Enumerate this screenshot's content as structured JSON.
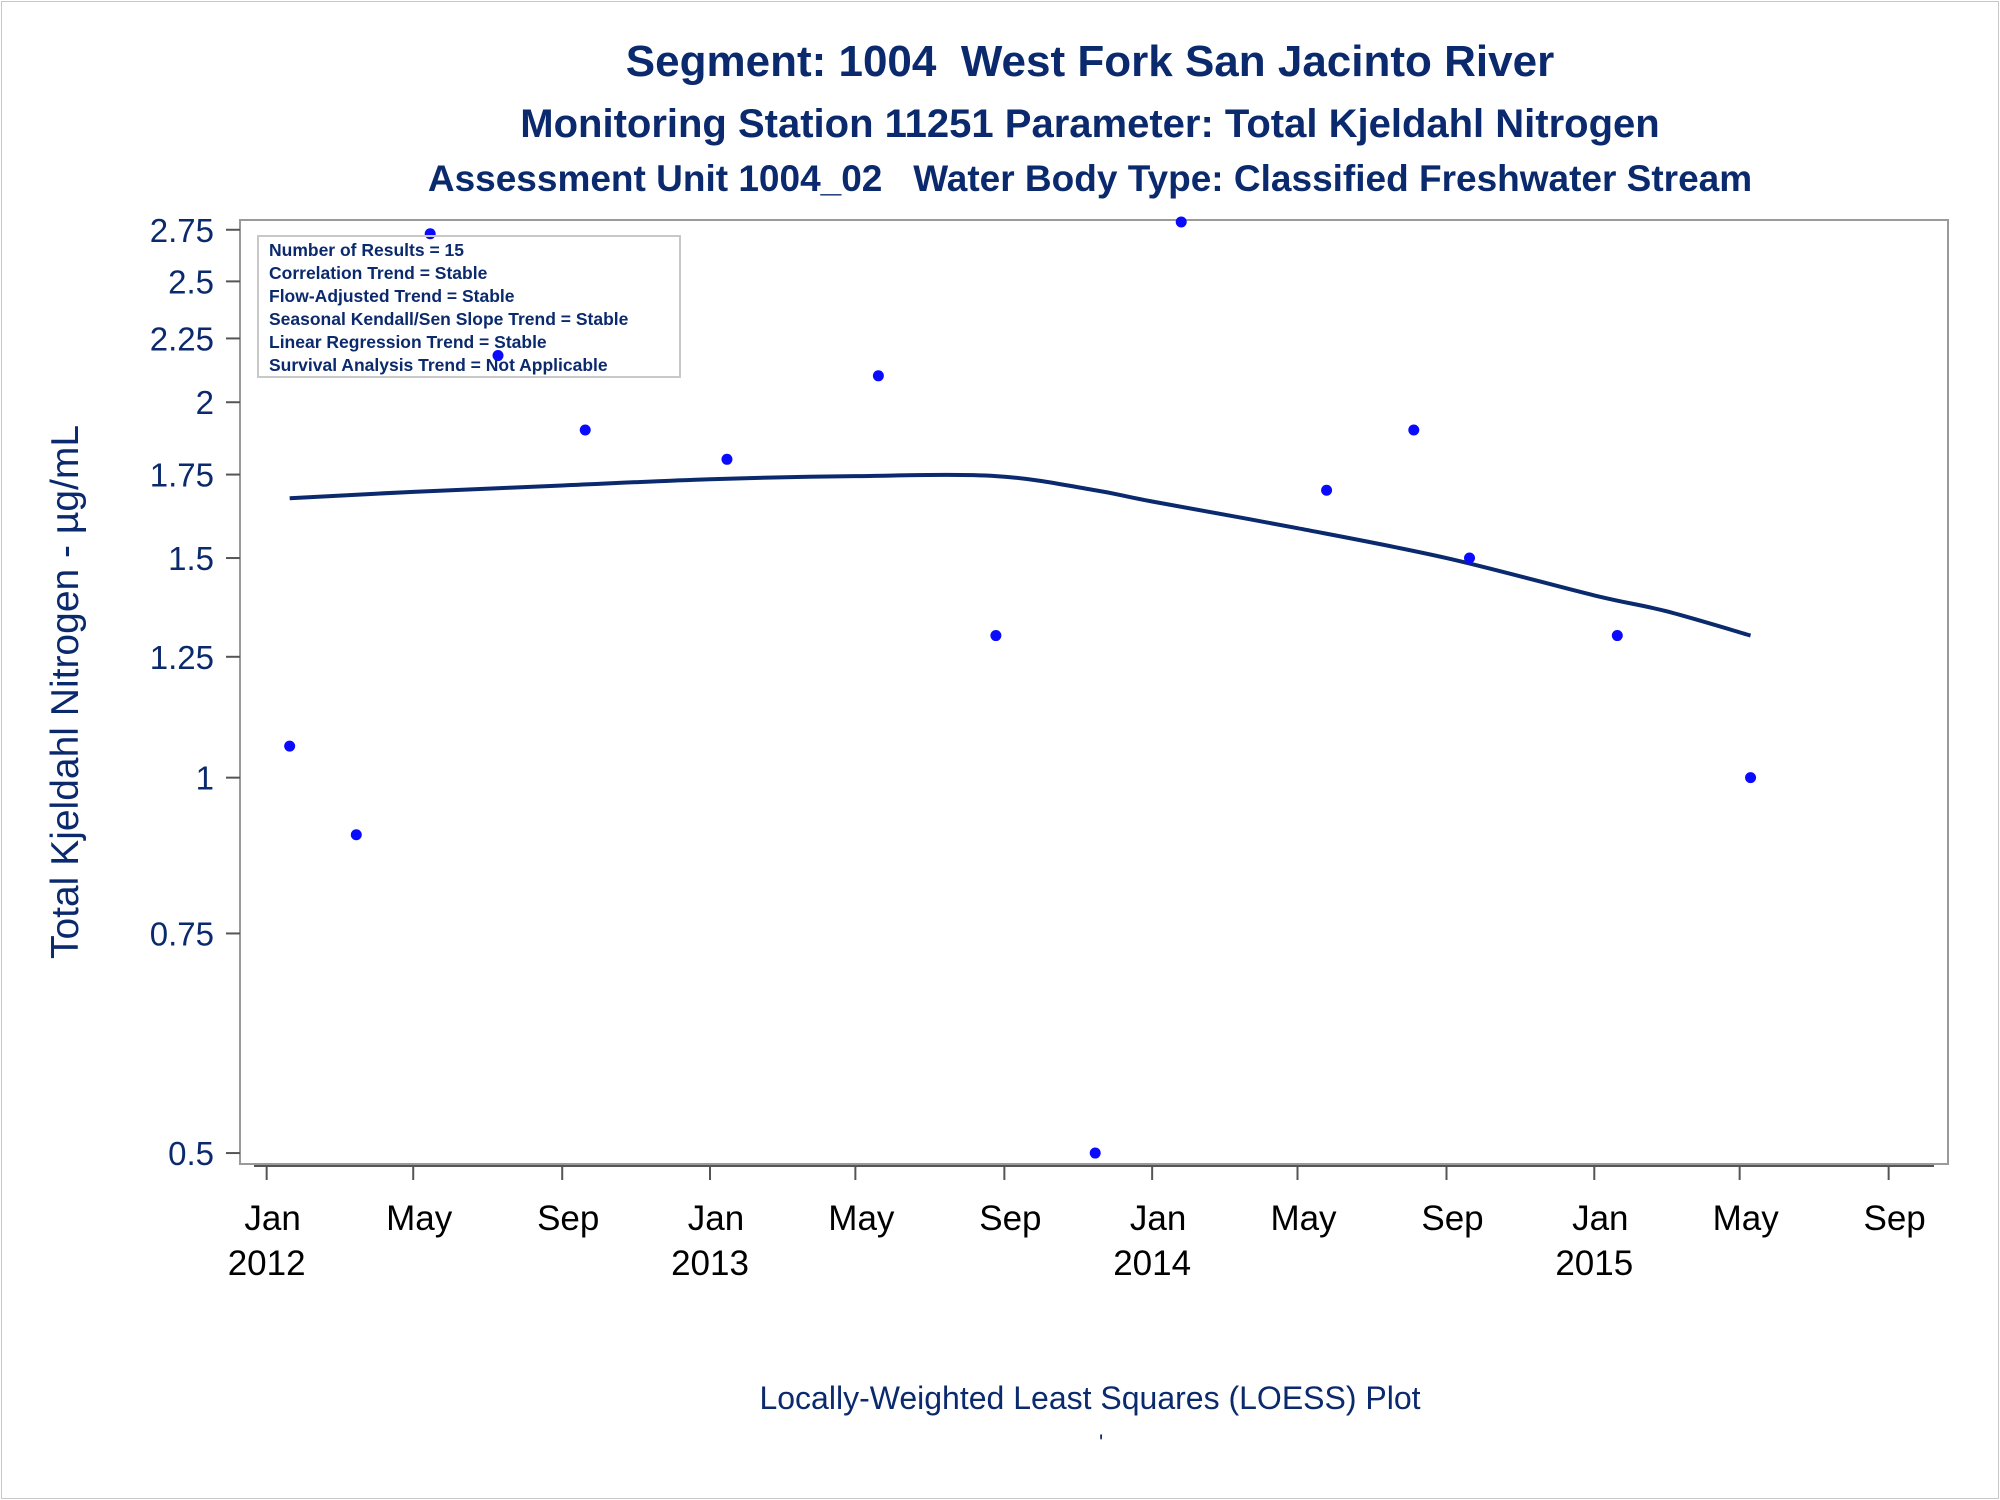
{
  "chart_data": {
    "type": "scatter",
    "title": "Segment: 1004  West Fork San Jacinto River",
    "subtitle": "Monitoring Station 11251 Parameter: Total Kjeldahl Nitrogen",
    "subtitle2": "Assessment Unit 1004_02   Water Body Type: Classified Freshwater Stream",
    "ylabel": "Total Kjeldahl Nitrogen -  µg/mL",
    "footnote": "Locally-Weighted Least Squares (LOESS) Plot",
    "footnote_mark": "'",
    "y_scale": "log",
    "ylim": [
      0.49,
      2.8
    ],
    "y_ticks": [
      0.5,
      0.75,
      1,
      1.25,
      1.5,
      1.75,
      2,
      2.25,
      2.5,
      2.75
    ],
    "y_tick_labels": [
      "0.5",
      "0.75",
      "1",
      "1.25",
      "1.5",
      "1.75",
      "2",
      "2.25",
      "2.5",
      "2.75"
    ],
    "xlim": [
      "2011-12-10",
      "2015-10-20"
    ],
    "x_ticks": [
      {
        "date": "2012-01-01",
        "month": "Jan",
        "year": "2012"
      },
      {
        "date": "2012-05-01",
        "month": "May",
        "year": ""
      },
      {
        "date": "2012-09-01",
        "month": "Sep",
        "year": ""
      },
      {
        "date": "2013-01-01",
        "month": "Jan",
        "year": "2013"
      },
      {
        "date": "2013-05-01",
        "month": "May",
        "year": ""
      },
      {
        "date": "2013-09-01",
        "month": "Sep",
        "year": ""
      },
      {
        "date": "2014-01-01",
        "month": "Jan",
        "year": "2014"
      },
      {
        "date": "2014-05-01",
        "month": "May",
        "year": ""
      },
      {
        "date": "2014-09-01",
        "month": "Sep",
        "year": ""
      },
      {
        "date": "2015-01-01",
        "month": "Jan",
        "year": "2015"
      },
      {
        "date": "2015-05-01",
        "month": "May",
        "year": ""
      },
      {
        "date": "2015-09-01",
        "month": "Sep",
        "year": ""
      }
    ],
    "points": [
      {
        "x": "2012-01-20",
        "y": 1.06
      },
      {
        "x": "2012-03-15",
        "y": 0.9
      },
      {
        "x": "2012-05-15",
        "y": 2.73
      },
      {
        "x": "2012-07-10",
        "y": 2.18
      },
      {
        "x": "2012-09-20",
        "y": 1.9
      },
      {
        "x": "2013-01-15",
        "y": 1.8
      },
      {
        "x": "2013-05-20",
        "y": 2.1
      },
      {
        "x": "2013-08-25",
        "y": 1.3
      },
      {
        "x": "2013-11-15",
        "y": 0.5
      },
      {
        "x": "2014-01-25",
        "y": 2.79
      },
      {
        "x": "2014-05-25",
        "y": 1.7
      },
      {
        "x": "2014-08-05",
        "y": 1.9
      },
      {
        "x": "2014-09-20",
        "y": 1.5
      },
      {
        "x": "2015-01-20",
        "y": 1.3
      },
      {
        "x": "2015-05-10",
        "y": 1.0
      }
    ],
    "loess": [
      {
        "x": "2012-01-20",
        "y": 1.675
      },
      {
        "x": "2012-05-01",
        "y": 1.695
      },
      {
        "x": "2012-09-01",
        "y": 1.715
      },
      {
        "x": "2013-01-01",
        "y": 1.735
      },
      {
        "x": "2013-05-01",
        "y": 1.745
      },
      {
        "x": "2013-08-25",
        "y": 1.745
      },
      {
        "x": "2013-11-15",
        "y": 1.7
      },
      {
        "x": "2014-01-01",
        "y": 1.665
      },
      {
        "x": "2014-05-01",
        "y": 1.585
      },
      {
        "x": "2014-09-01",
        "y": 1.5
      },
      {
        "x": "2015-01-01",
        "y": 1.4
      },
      {
        "x": "2015-03-01",
        "y": 1.36
      },
      {
        "x": "2015-05-10",
        "y": 1.3
      }
    ],
    "legend_position": "top-left",
    "grid": false,
    "colors": {
      "points": "#0a0aff",
      "loess": "#0b2a6e",
      "text": "#0b2a6e",
      "axis": "#9a9a9a"
    }
  },
  "stats_box": [
    "Number of Results = 15",
    "Correlation Trend = Stable",
    "Flow-Adjusted Trend = Stable",
    "Seasonal Kendall/Sen Slope Trend = Stable",
    "Linear Regression Trend = Stable",
    "Survival Analysis Trend = Not Applicable"
  ]
}
